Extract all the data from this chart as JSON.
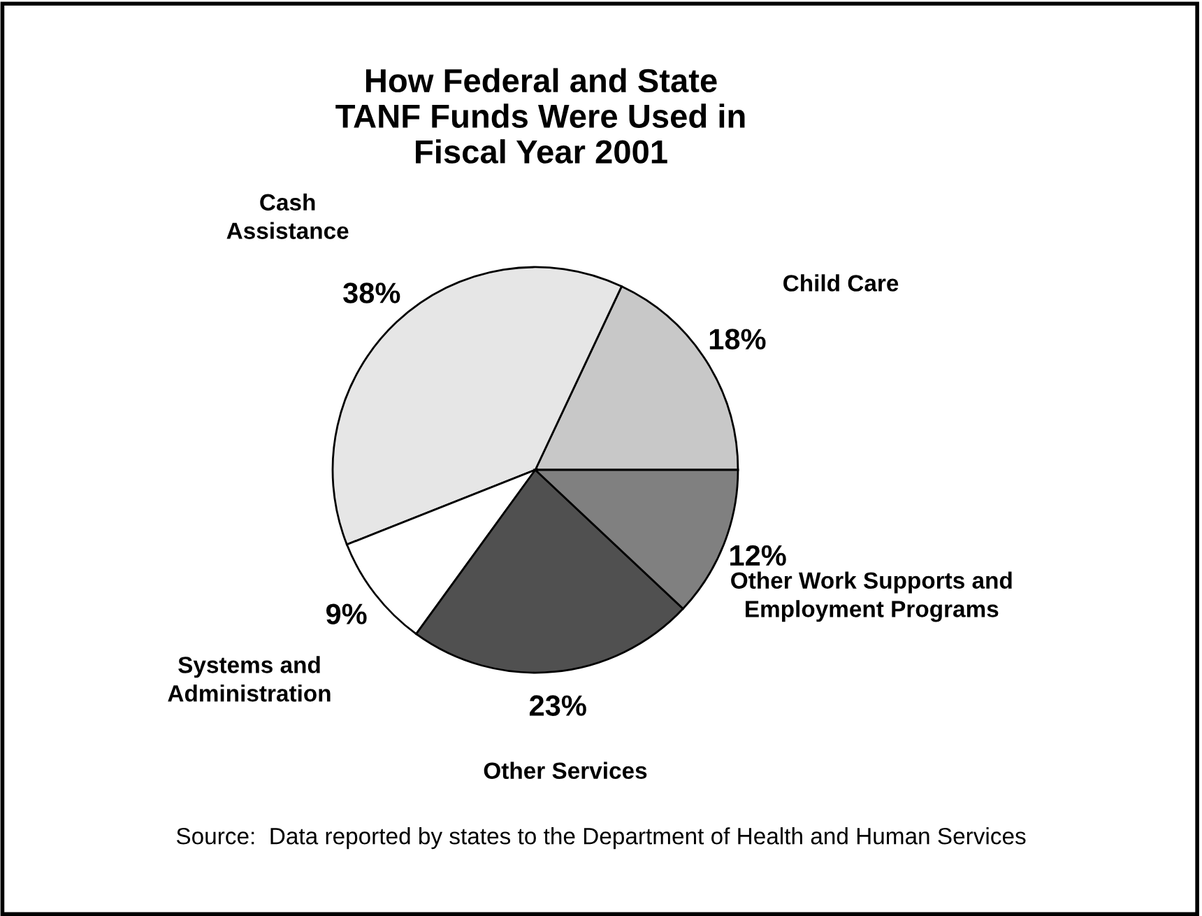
{
  "chart_data": {
    "type": "pie",
    "title": "How Federal and State\nTANF Funds Were Used in\nFiscal Year 2001",
    "categories": [
      "Child Care",
      "Cash\nAssistance",
      "Systems and\nAdministration",
      "Other Services",
      "Other Work Supports and\nEmployment Programs"
    ],
    "values": [
      18,
      38,
      9,
      23,
      12
    ],
    "colors": [
      "#c8c8c8",
      "#e6e6e6",
      "#ffffff",
      "#505050",
      "#808080"
    ],
    "value_labels": [
      "18%",
      "38%",
      "9%",
      "23%",
      "12%"
    ],
    "annotations": [
      "Source:  Data reported by states to the Department of Health and Human Services"
    ]
  }
}
